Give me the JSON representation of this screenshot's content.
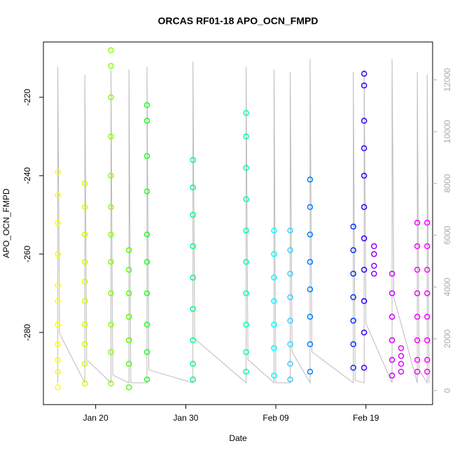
{
  "chart_data": {
    "type": "scatter",
    "title": "ORCAS RF01-18 APO_OCN_FMPD",
    "x_label": "Date",
    "y_label": "APO_OCN_FMPD",
    "xlim": [
      14.2,
      57.4
    ],
    "xticks": [
      {
        "value": 20,
        "label": "Jan 20"
      },
      {
        "value": 30,
        "label": "Jan 30"
      },
      {
        "value": 40,
        "label": "Feb 09"
      },
      {
        "value": 50,
        "label": "Feb 19"
      }
    ],
    "ylim": [
      -298.4,
      -205.9
    ],
    "yticks": [
      -220,
      -240,
      -260,
      -280
    ],
    "y2lim": [
      -540,
      13460
    ],
    "y2ticks": [
      0,
      2000,
      4000,
      6000,
      8000,
      10000,
      12000
    ],
    "series": [
      {
        "color": "#ffff00",
        "x": 15.8,
        "values": [
          -239,
          -245,
          -252,
          -260,
          -268,
          -272,
          -278,
          -283,
          -287,
          -290,
          -294
        ]
      },
      {
        "color": "#ccff00",
        "x": 18.8,
        "values": [
          -242,
          -248,
          -255,
          -262,
          -267,
          -272,
          -278,
          -283,
          -288,
          -293
        ]
      },
      {
        "color": "#88ff00",
        "x": 21.7,
        "values": [
          -208,
          -212,
          -220,
          -230,
          -240,
          -248,
          -255,
          -262,
          -270,
          -278,
          -285,
          -293
        ]
      },
      {
        "color": "#55ff00",
        "x": 23.7,
        "values": [
          -259,
          -264,
          -270,
          -276,
          -282,
          -288,
          -294
        ]
      },
      {
        "color": "#22ff22",
        "x": 25.7,
        "values": [
          -222,
          -226,
          -235,
          -244,
          -255,
          -262,
          -270,
          -278,
          -285,
          -292
        ]
      },
      {
        "color": "#00ff80",
        "x": 30.8,
        "values": [
          -236,
          -243,
          -250,
          -258,
          -266,
          -274,
          -282,
          -288,
          -292
        ]
      },
      {
        "color": "#00ffbb",
        "x": 36.7,
        "values": [
          -224,
          -230,
          -238,
          -246,
          -254,
          -262,
          -270,
          -278,
          -285,
          -290
        ]
      },
      {
        "color": "#00ffff",
        "x": 39.8,
        "values": [
          -254,
          -260,
          -266,
          -272,
          -278,
          -284,
          -291
        ]
      },
      {
        "color": "#44ccff",
        "x": 41.6,
        "values": [
          -254,
          -259,
          -265,
          -271,
          -277,
          -283,
          -288,
          -292
        ]
      },
      {
        "color": "#0080ff",
        "x": 43.8,
        "values": [
          -241,
          -248,
          -255,
          -262,
          -269,
          -276,
          -283,
          -290
        ]
      },
      {
        "color": "#0033ff",
        "x": 48.6,
        "values": [
          -253,
          -259,
          -265,
          -271,
          -277,
          -283,
          -289
        ]
      },
      {
        "color": "#3300ff",
        "x": 49.8,
        "values": [
          -214,
          -217,
          -226,
          -233,
          -240,
          -248,
          -256,
          -264,
          -272,
          -280,
          -289
        ]
      },
      {
        "color": "#8800ff",
        "x": 50.9,
        "values": [
          -258,
          -260,
          -263,
          -265
        ]
      },
      {
        "color": "#cc00ff",
        "x": 52.9,
        "values": [
          -265,
          -270,
          -276,
          -282,
          -287,
          -291
        ]
      },
      {
        "color": "#dd00ff",
        "x": 53.9,
        "values": [
          -284,
          -286,
          -288,
          -290
        ]
      },
      {
        "color": "#ff00ff",
        "x": 55.7,
        "values": [
          -252,
          -258,
          -264,
          -270,
          -276,
          -282,
          -287,
          -290
        ]
      },
      {
        "color": "#ff00ff",
        "x": 56.8,
        "values": [
          -252,
          -258,
          -264,
          -270,
          -276,
          -282,
          -287,
          -290
        ]
      }
    ],
    "altitude": {
      "axis": "y2",
      "color": "#bbbbbb",
      "x": [
        15.8,
        15.8,
        16.0,
        18.8,
        18.8,
        19.0,
        21.7,
        21.7,
        21.9,
        23.7,
        23.7,
        23.9,
        25.7,
        25.7,
        25.9,
        30.8,
        30.8,
        31.0,
        36.7,
        36.7,
        36.9,
        39.8,
        39.8,
        40.0,
        41.6,
        41.6,
        41.8,
        43.8,
        43.8,
        44.0,
        48.6,
        48.6,
        48.8,
        49.8,
        49.8,
        50.0,
        52.9,
        52.9,
        53.1,
        55.7,
        55.7,
        55.9,
        56.8,
        56.8,
        57.0
      ],
      "values": [
        300,
        12500,
        2200,
        300,
        12200,
        1200,
        300,
        12400,
        600,
        300,
        12400,
        300,
        300,
        12500,
        800,
        300,
        12700,
        2000,
        300,
        12500,
        1200,
        300,
        12400,
        300,
        300,
        12300,
        1500,
        300,
        12800,
        1500,
        300,
        12300,
        400,
        300,
        12400,
        2600,
        300,
        12800,
        3600,
        300,
        12300,
        800,
        300,
        12200,
        300
      ]
    }
  }
}
